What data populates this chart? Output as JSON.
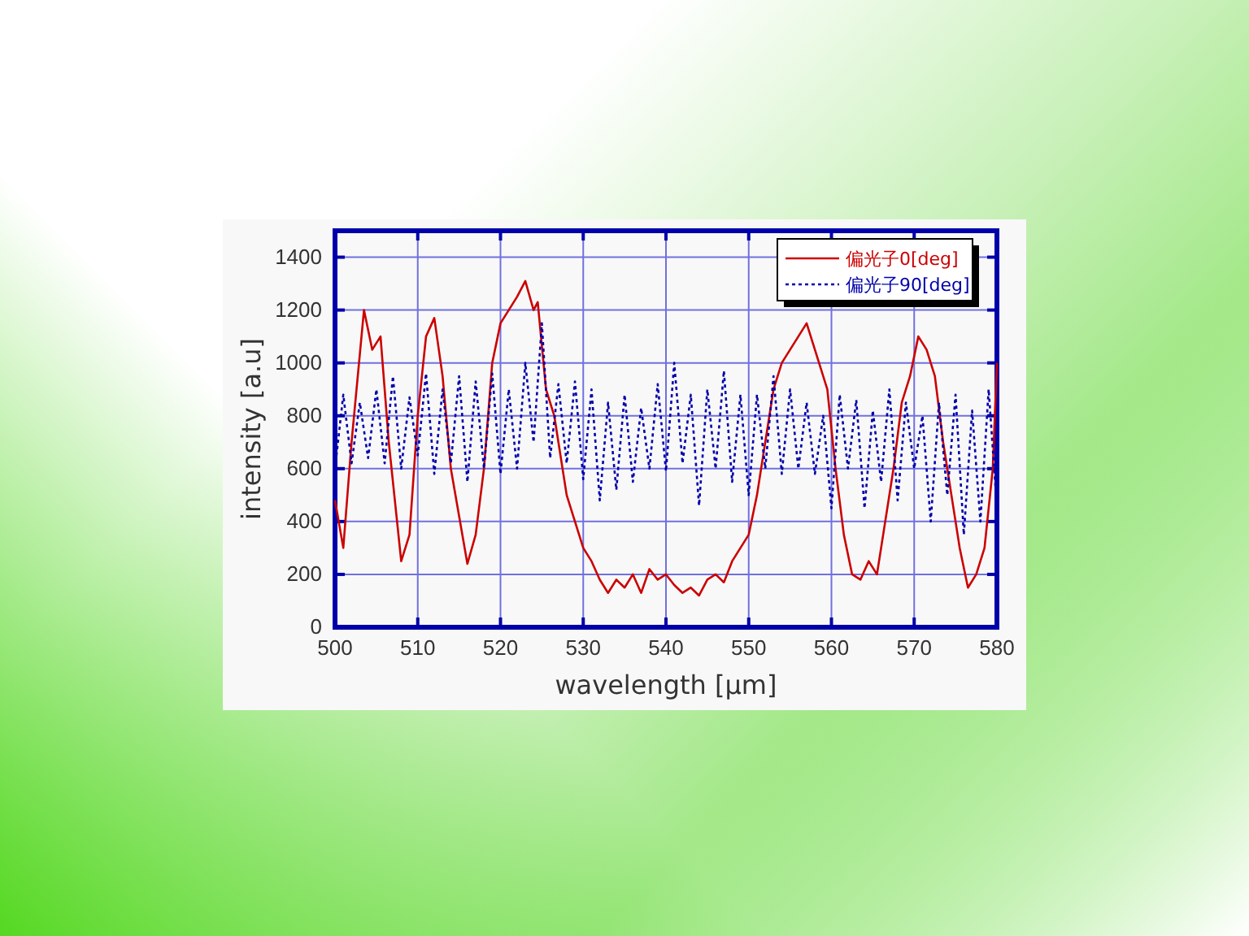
{
  "chart_data": {
    "type": "line",
    "xlabel": "wavelength [μm]",
    "ylabel": "intensity [a.u]",
    "xlim": [
      500,
      580
    ],
    "xticks": [
      500,
      510,
      520,
      530,
      540,
      550,
      560,
      570,
      580
    ],
    "ylim": [
      0,
      1500
    ],
    "yticks": [
      0,
      200,
      400,
      600,
      800,
      1000,
      1200,
      1400
    ],
    "grid": true,
    "legend": "top right",
    "marker": "none",
    "series": [
      {
        "name": "偏光子0[deg]",
        "color": "#cc0000",
        "line_style": "solid",
        "x": [
          500,
          501,
          502,
          503.5,
          504.5,
          505.5,
          506.5,
          508,
          509,
          510,
          511,
          512,
          513,
          514,
          516,
          517,
          518,
          519,
          520,
          521,
          522,
          523,
          524,
          524.5,
          525.5,
          526.5,
          528,
          529,
          530,
          531,
          532,
          533,
          534,
          535,
          536,
          537,
          538,
          539,
          540,
          541,
          542,
          543,
          544,
          545,
          546,
          547,
          548,
          549,
          550,
          551,
          552,
          553,
          554,
          555,
          556,
          557,
          558,
          558.5,
          559.5,
          560.5,
          561.5,
          562.5,
          563.5,
          564.5,
          565.5,
          566.5,
          567.5,
          568.5,
          569.5,
          570.5,
          571.5,
          572.5,
          573.5,
          574.5,
          575.5,
          576.5,
          577.5,
          578.5,
          579.5,
          580
        ],
        "values": [
          480,
          300,
          700,
          1200,
          1050,
          1100,
          700,
          250,
          350,
          800,
          1100,
          1170,
          950,
          600,
          240,
          350,
          600,
          1000,
          1150,
          1200,
          1250,
          1310,
          1200,
          1230,
          900,
          800,
          500,
          400,
          300,
          250,
          180,
          130,
          180,
          150,
          200,
          130,
          220,
          180,
          200,
          160,
          130,
          150,
          120,
          180,
          200,
          170,
          250,
          300,
          350,
          500,
          700,
          900,
          1000,
          1050,
          1100,
          1150,
          1050,
          1000,
          900,
          600,
          350,
          200,
          180,
          250,
          200,
          400,
          600,
          850,
          950,
          1100,
          1050,
          950,
          700,
          500,
          300,
          150,
          200,
          300,
          600,
          1000
        ]
      },
      {
        "name": "偏光子90[deg]",
        "color": "#0000aa",
        "line_style": "dotted",
        "x": [
          500,
          501,
          502,
          503,
          504,
          505,
          506,
          507,
          508,
          509,
          510,
          511,
          512,
          513,
          514,
          515,
          516,
          517,
          518,
          519,
          520,
          521,
          522,
          523,
          524,
          525,
          526,
          527,
          528,
          529,
          530,
          531,
          532,
          533,
          534,
          535,
          536,
          537,
          538,
          539,
          540,
          541,
          542,
          543,
          544,
          545,
          546,
          547,
          548,
          549,
          550,
          551,
          552,
          553,
          554,
          555,
          556,
          557,
          558,
          559,
          560,
          561,
          562,
          563,
          564,
          565,
          566,
          567,
          568,
          569,
          570,
          571,
          572,
          573,
          574,
          575,
          576,
          577,
          578,
          579,
          580
        ],
        "values": [
          600,
          880,
          620,
          850,
          640,
          900,
          620,
          950,
          600,
          870,
          650,
          960,
          580,
          900,
          620,
          950,
          550,
          930,
          600,
          960,
          580,
          900,
          600,
          1000,
          700,
          1150,
          640,
          920,
          620,
          930,
          560,
          900,
          480,
          850,
          520,
          880,
          550,
          830,
          600,
          920,
          590,
          1000,
          620,
          880,
          460,
          900,
          600,
          970,
          550,
          880,
          500,
          880,
          600,
          950,
          580,
          900,
          600,
          850,
          580,
          800,
          450,
          880,
          600,
          860,
          450,
          820,
          550,
          900,
          480,
          850,
          600,
          800,
          400,
          850,
          500,
          880,
          350,
          820,
          400,
          900,
          450
        ]
      }
    ]
  }
}
